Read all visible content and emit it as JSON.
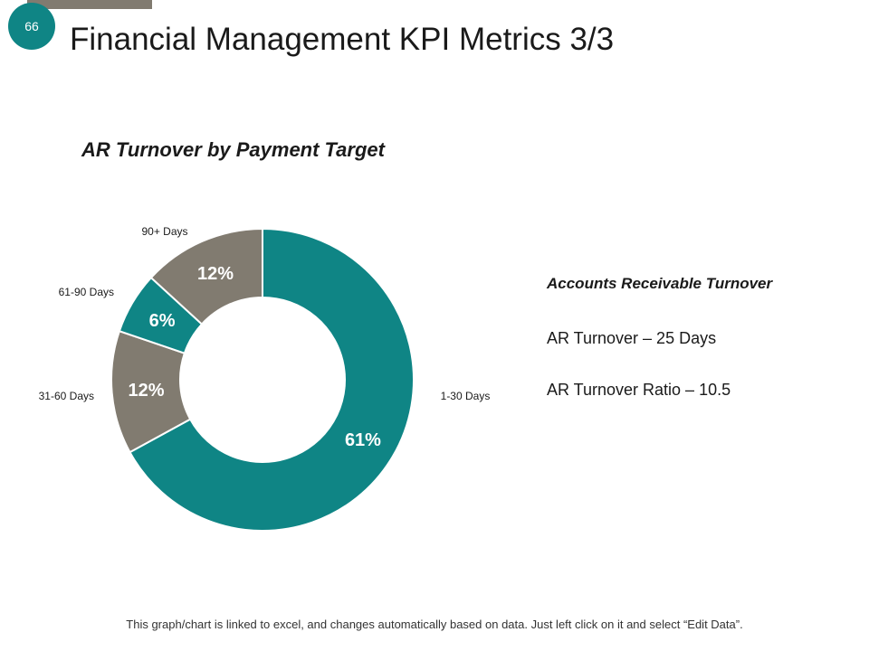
{
  "slide": {
    "number": "66",
    "title": "Financial Management KPI Metrics 3/3",
    "footer": "This graph/chart is linked to excel, and changes automatically based on data. Just left click on it and select “Edit Data”."
  },
  "info": {
    "heading": "Accounts Receivable Turnover",
    "line1": "AR Turnover – 25 Days",
    "line2": "AR Turnover Ratio – 10.5"
  },
  "colors": {
    "teal": "#0f8585",
    "gray": "#817b70",
    "badge": "#0f8585"
  },
  "chart_data": {
    "type": "pie",
    "donut": true,
    "title": "AR Turnover by Payment Target",
    "categories": [
      "1-30 Days",
      "31-60 Days",
      "61-90 Days",
      "90+ Days"
    ],
    "values": [
      61,
      12,
      6,
      12
    ],
    "value_labels": [
      "61%",
      "12%",
      "6%",
      "12%"
    ],
    "slice_colors": [
      "#0f8585",
      "#817b70",
      "#0f8585",
      "#817b70"
    ]
  }
}
